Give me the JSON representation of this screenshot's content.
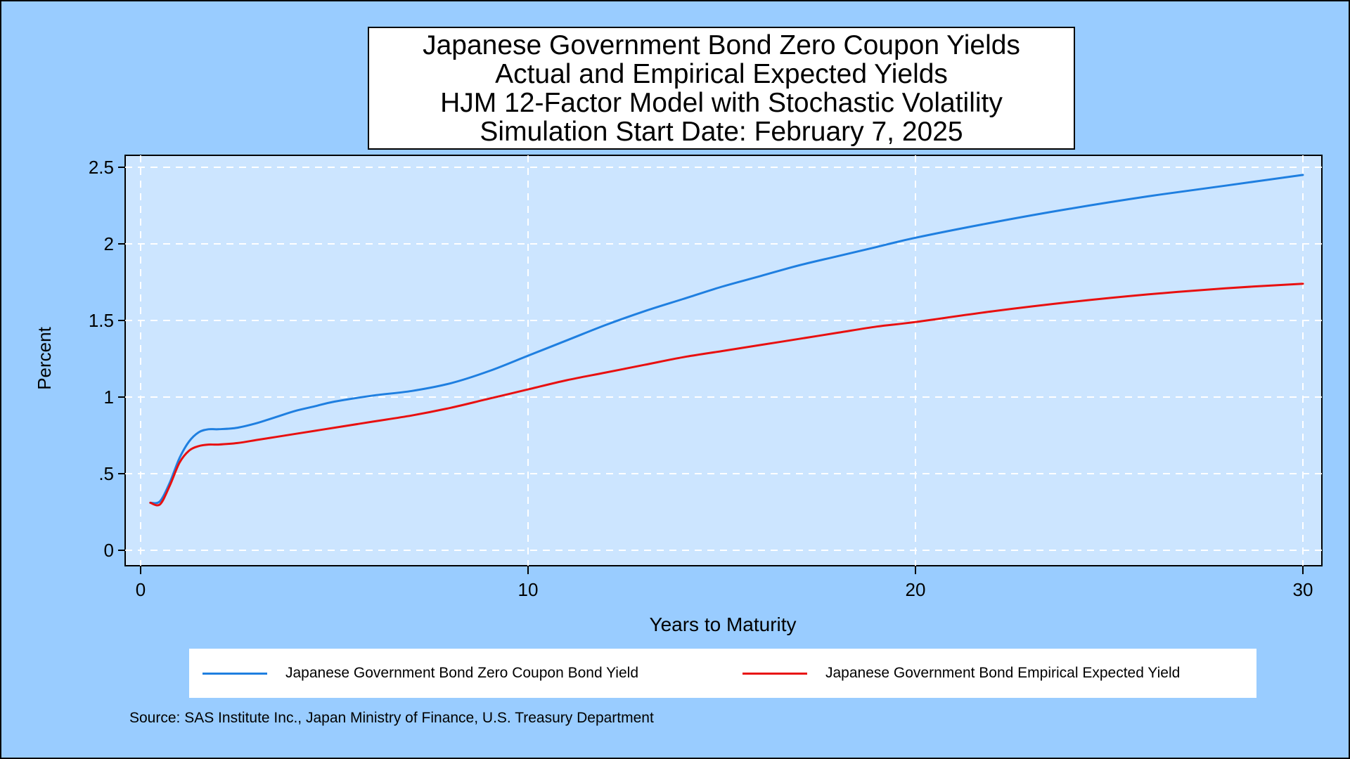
{
  "chart_data": {
    "type": "line",
    "title_lines": [
      "Japanese Government Bond Zero Coupon Yields",
      "Actual and Empirical Expected Yields",
      "HJM 12-Factor Model with Stochastic Volatility",
      "Simulation Start Date: February 7, 2025"
    ],
    "xlabel": "Years to Maturity",
    "ylabel": "Percent",
    "xlim": [
      0,
      30
    ],
    "ylim": [
      0,
      2.5
    ],
    "x_ticks": [
      0,
      10,
      20,
      30
    ],
    "x_tick_labels": [
      "0",
      "10",
      "20",
      "30"
    ],
    "y_ticks": [
      0,
      0.5,
      1,
      1.5,
      2,
      2.5
    ],
    "y_tick_labels": [
      "0",
      ".5",
      "1",
      "1.5",
      "2",
      "2.5"
    ],
    "grid": true,
    "legend_position": "bottom",
    "series": [
      {
        "name": "Japanese Government Bond Zero Coupon Bond Yield",
        "color": "#1f7fe0",
        "x": [
          0.25,
          0.5,
          0.75,
          1.0,
          1.25,
          1.5,
          1.75,
          2.0,
          2.5,
          3,
          3.5,
          4,
          4.5,
          5,
          6,
          7,
          8,
          9,
          10,
          11,
          12,
          13,
          14,
          15,
          16,
          17,
          18,
          19,
          20,
          22,
          24,
          26,
          28,
          30
        ],
        "values": [
          0.31,
          0.32,
          0.44,
          0.6,
          0.71,
          0.77,
          0.79,
          0.79,
          0.8,
          0.83,
          0.87,
          0.91,
          0.94,
          0.97,
          1.01,
          1.04,
          1.09,
          1.17,
          1.27,
          1.37,
          1.47,
          1.56,
          1.64,
          1.72,
          1.79,
          1.86,
          1.92,
          1.98,
          2.04,
          2.14,
          2.23,
          2.31,
          2.38,
          2.45
        ]
      },
      {
        "name": "Japanese Government Bond Empirical Expected Yield",
        "color": "#e81010",
        "x": [
          0.25,
          0.5,
          0.75,
          1.0,
          1.25,
          1.5,
          1.75,
          2.0,
          2.5,
          3,
          3.5,
          4,
          4.5,
          5,
          6,
          7,
          8,
          9,
          10,
          11,
          12,
          13,
          14,
          15,
          16,
          17,
          18,
          19,
          20,
          22,
          24,
          26,
          28,
          30
        ],
        "values": [
          0.31,
          0.3,
          0.42,
          0.57,
          0.65,
          0.68,
          0.69,
          0.69,
          0.7,
          0.72,
          0.74,
          0.76,
          0.78,
          0.8,
          0.84,
          0.88,
          0.93,
          0.99,
          1.05,
          1.11,
          1.16,
          1.21,
          1.26,
          1.3,
          1.34,
          1.38,
          1.42,
          1.46,
          1.49,
          1.56,
          1.62,
          1.67,
          1.71,
          1.74
        ]
      }
    ],
    "source": "Source: SAS Institute Inc., Japan Ministry of Finance, U.S. Treasury Department"
  },
  "colors": {
    "background": "#99ccff",
    "plot_area": "#cce5ff",
    "grid": "#ffffff",
    "axis": "#000000"
  }
}
